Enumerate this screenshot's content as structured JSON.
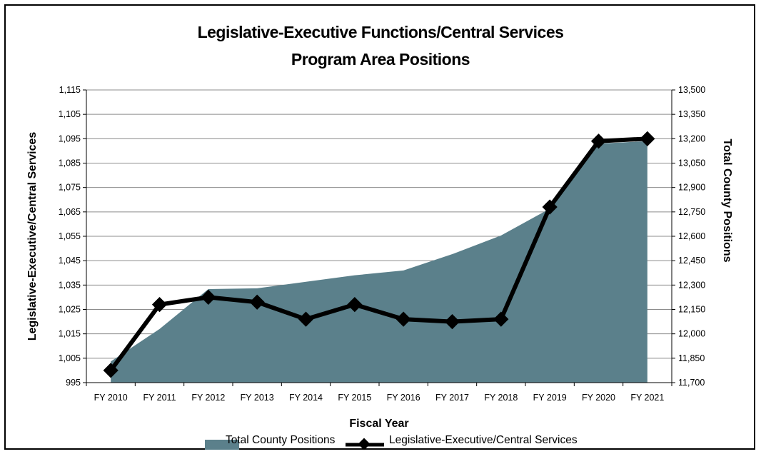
{
  "chart_data": {
    "type": "area+line",
    "title": "Legislative-Executive Functions/Central Services",
    "subtitle": "Program Area Positions",
    "xlabel": "Fiscal Year",
    "ylabel_left": "Legislative-Executive/Central Services",
    "ylabel_right": "Total County Positions",
    "categories": [
      "FY 2010",
      "FY 2011",
      "FY 2012",
      "FY 2013",
      "FY 2014",
      "FY 2015",
      "FY 2016",
      "FY 2017",
      "FY 2018",
      "FY 2019",
      "FY 2020",
      "FY 2021"
    ],
    "y_left": {
      "min": 995,
      "max": 1115,
      "ticks": [
        "995",
        "1,005",
        "1,015",
        "1,025",
        "1,035",
        "1,045",
        "1,055",
        "1,065",
        "1,075",
        "1,085",
        "1,095",
        "1,105",
        "1,115"
      ]
    },
    "y_right": {
      "min": 11700,
      "max": 13500,
      "ticks": [
        "11,700",
        "11,850",
        "12,000",
        "12,150",
        "12,300",
        "12,450",
        "12,600",
        "12,750",
        "12,900",
        "13,050",
        "13,200",
        "13,350",
        "13,500"
      ]
    },
    "grid": true,
    "legend_position": "bottom",
    "series": [
      {
        "name": "Total County Positions",
        "type": "area",
        "axis": "right",
        "color": "#5b808b",
        "values": [
          11830,
          12030,
          12275,
          12280,
          12320,
          12360,
          12390,
          12490,
          12605,
          12770,
          13170,
          13185
        ]
      },
      {
        "name": "Legislative-Executive/Central Services",
        "type": "line",
        "axis": "left",
        "color": "#000000",
        "values": [
          1000,
          1027,
          1030,
          1028,
          1021,
          1027,
          1021,
          1020,
          1021,
          1067,
          1094,
          1095
        ]
      }
    ]
  }
}
